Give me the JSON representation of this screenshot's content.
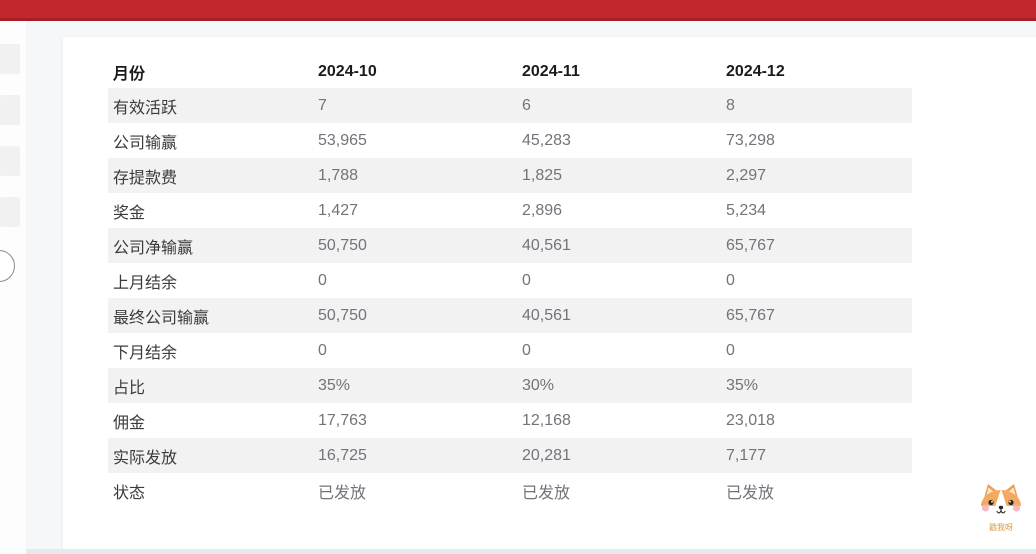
{
  "topbar": {
    "color": "#c3272e"
  },
  "sidebar": {
    "skeleton_item_count": 4,
    "collapse_button": "sidebar-toggle"
  },
  "table": {
    "columns": [
      "月份",
      "2024-10",
      "2024-11",
      "2024-12"
    ],
    "rows": [
      {
        "label": "有效活跃",
        "values": [
          "7",
          "6",
          "8"
        ]
      },
      {
        "label": "公司输赢",
        "values": [
          "53,965",
          "45,283",
          "73,298"
        ]
      },
      {
        "label": "存提款费",
        "values": [
          "1,788",
          "1,825",
          "2,297"
        ]
      },
      {
        "label": "奖金",
        "values": [
          "1,427",
          "2,896",
          "5,234"
        ]
      },
      {
        "label": "公司净输赢",
        "values": [
          "50,750",
          "40,561",
          "65,767"
        ]
      },
      {
        "label": "上月结余",
        "values": [
          "0",
          "0",
          "0"
        ]
      },
      {
        "label": "最终公司输赢",
        "values": [
          "50,750",
          "40,561",
          "65,767"
        ]
      },
      {
        "label": "下月结余",
        "values": [
          "0",
          "0",
          "0"
        ]
      },
      {
        "label": "占比",
        "values": [
          "35%",
          "30%",
          "35%"
        ]
      },
      {
        "label": "佣金",
        "values": [
          "17,763",
          "12,168",
          "23,018"
        ]
      },
      {
        "label": "实际发放",
        "values": [
          "16,725",
          "20,281",
          "7,177"
        ]
      },
      {
        "label": "状态",
        "values": [
          "已发放",
          "已发放",
          "已发放"
        ]
      }
    ],
    "stripe_color": "#f2f2f3"
  },
  "mascot": {
    "label": "戳我呀"
  }
}
